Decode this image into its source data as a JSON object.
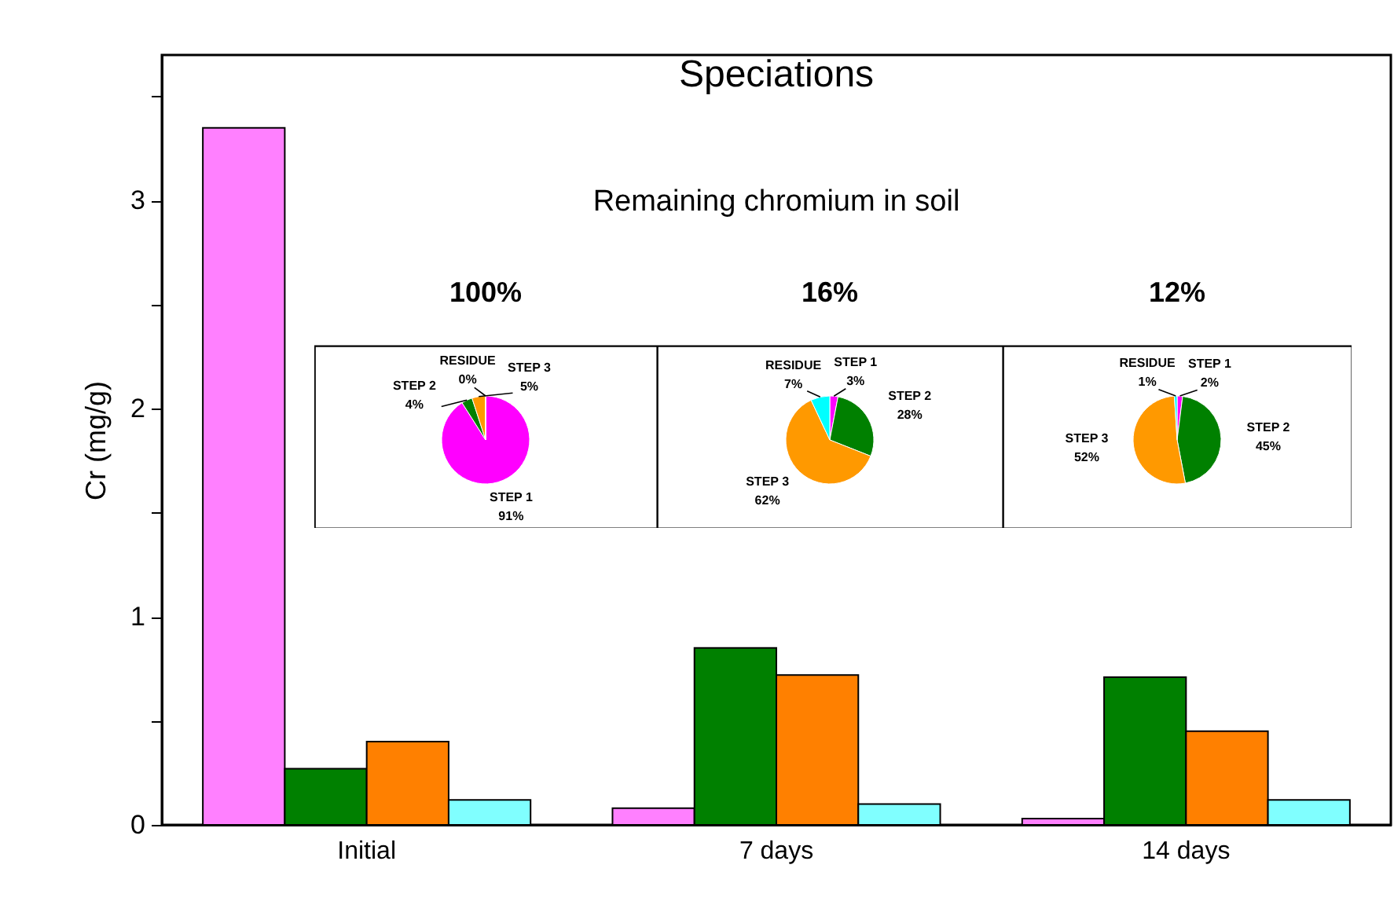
{
  "chart_data": [
    {
      "type": "bar",
      "title": "Speciations",
      "subtitle": "Remaining chromium in soil",
      "ylabel": "Cr (mg/g)",
      "categories": [
        "Initial",
        "7 days",
        "14 days"
      ],
      "series": [
        {
          "color": "#ff80ff",
          "values": [
            3.35,
            0.08,
            0.03
          ]
        },
        {
          "color": "#008000",
          "values": [
            0.27,
            0.85,
            0.71
          ]
        },
        {
          "color": "#ff8000",
          "values": [
            0.4,
            0.72,
            0.45
          ]
        },
        {
          "color": "#80ffff",
          "values": [
            0.12,
            0.1,
            0.12
          ]
        }
      ],
      "ylim": [
        0,
        3.7
      ],
      "yticks": [
        0,
        {
          "value": 0.5,
          "label": null
        },
        1,
        {
          "value": 1.5,
          "label": null
        },
        2,
        {
          "value": 2.5,
          "label": null
        },
        3,
        {
          "value": 3.5,
          "label": null
        }
      ]
    },
    {
      "type": "pie",
      "title": "100%",
      "categories": [
        "STEP 1",
        "STEP 2",
        "STEP 3",
        "RESIDUE"
      ],
      "values": [
        91,
        4,
        5,
        0
      ],
      "value_labels": [
        "91%",
        "4%",
        "5%",
        "0%"
      ],
      "colors": [
        "#ff00ff",
        "#008000",
        "#ff9900",
        "#00ffff"
      ]
    },
    {
      "type": "pie",
      "title": "16%",
      "categories": [
        "STEP 1",
        "STEP 2",
        "STEP 3",
        "RESIDUE"
      ],
      "values": [
        3,
        28,
        62,
        7
      ],
      "value_labels": [
        "3%",
        "28%",
        "62%",
        "7%"
      ],
      "colors": [
        "#ff00ff",
        "#008000",
        "#ff9900",
        "#00ffff"
      ]
    },
    {
      "type": "pie",
      "title": "12%",
      "categories": [
        "STEP 1",
        "STEP 2",
        "STEP 3",
        "RESIDUE"
      ],
      "values": [
        2,
        45,
        52,
        1
      ],
      "value_labels": [
        "2%",
        "45%",
        "52%",
        "1%"
      ],
      "colors": [
        "#ff00ff",
        "#008000",
        "#ff9900",
        "#00ffff"
      ]
    }
  ]
}
